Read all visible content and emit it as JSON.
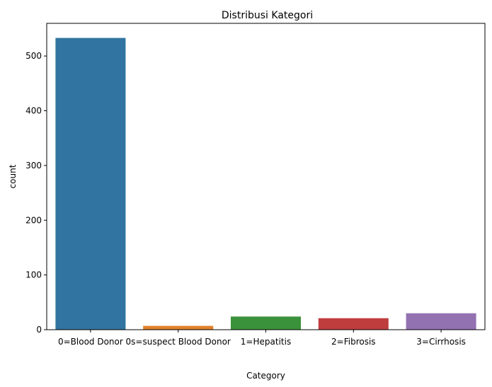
{
  "chart_data": {
    "type": "bar",
    "title": "Distribusi Kategori",
    "xlabel": "Category",
    "ylabel": "count",
    "categories": [
      "0=Blood Donor",
      "0s=suspect Blood Donor",
      "1=Hepatitis",
      "2=Fibrosis",
      "3=Cirrhosis"
    ],
    "values": [
      533,
      7,
      24,
      21,
      30
    ],
    "colors": [
      "#3274a1",
      "#e1812c",
      "#3a923a",
      "#c03d3e",
      "#9372b2"
    ],
    "ylim": [
      0,
      559.65
    ],
    "yticks": [
      0,
      100,
      200,
      300,
      400,
      500
    ],
    "grid": false
  }
}
